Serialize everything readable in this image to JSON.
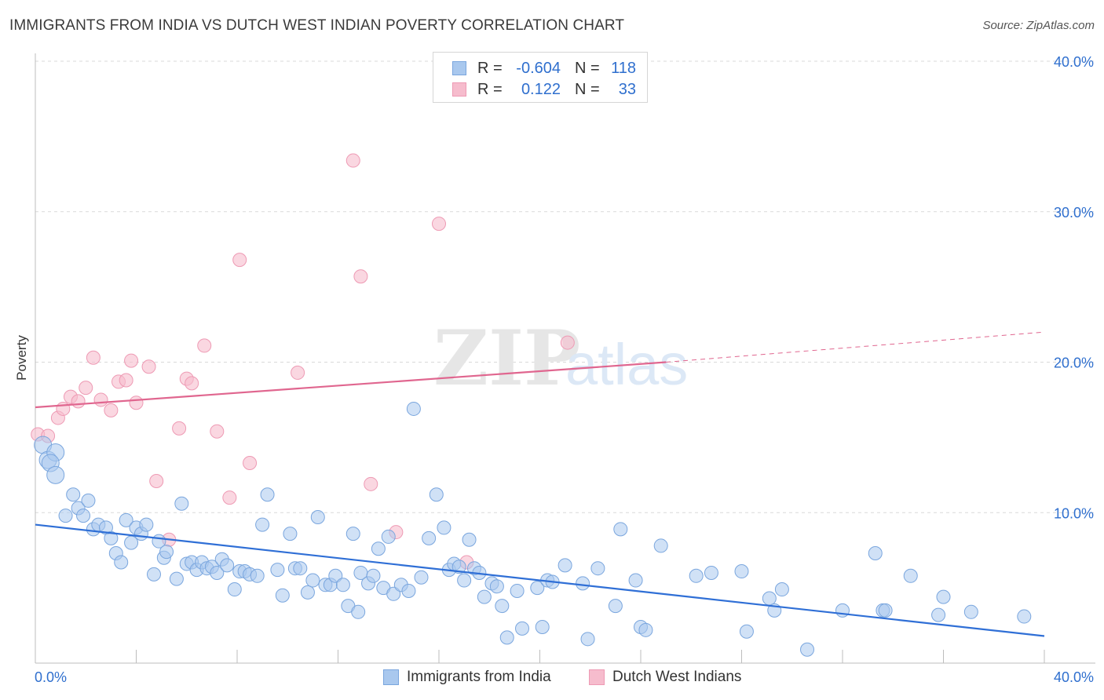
{
  "header": {
    "title": "IMMIGRANTS FROM INDIA VS DUTCH WEST INDIAN POVERTY CORRELATION CHART",
    "source": "Source: ZipAtlas.com"
  },
  "legend": {
    "rows": [
      {
        "r_label": "R =",
        "r_value": "-0.604",
        "n_label": "N =",
        "n_value": "118"
      },
      {
        "r_label": "R =",
        "r_value": "0.122",
        "n_label": "N =",
        "n_value": "33"
      }
    ]
  },
  "bottom_legend": {
    "items": [
      "Immigrants from India",
      "Dutch West Indians"
    ]
  },
  "colors": {
    "blue_fill": "#a9c8ee",
    "blue_stroke": "#7aa6de",
    "blue_line": "#2f6fd6",
    "pink_fill": "#f6bccd",
    "pink_stroke": "#ee9ab4",
    "pink_line": "#e0668f",
    "axis_label": "#2f6fce",
    "grid": "#d9d9d9"
  },
  "chart_data": {
    "type": "scatter",
    "title": "IMMIGRANTS FROM INDIA VS DUTCH WEST INDIAN POVERTY CORRELATION CHART",
    "xlabel": "",
    "ylabel": "Poverty",
    "xlim": [
      0,
      40
    ],
    "ylim": [
      0,
      40
    ],
    "x_tick_labels": [
      "0.0%",
      "40.0%"
    ],
    "y_tick_labels": [
      "10.0%",
      "20.0%",
      "30.0%",
      "40.0%"
    ],
    "y_ticks": [
      10,
      20,
      30,
      40
    ],
    "grid": true,
    "legend_position": "top-center",
    "watermark": "ZIPatlas",
    "series": [
      {
        "name": "Immigrants from India",
        "color": "#a9c8ee",
        "trend": {
          "x": [
            0,
            40
          ],
          "y": [
            9.2,
            1.8
          ]
        },
        "points": [
          [
            0.3,
            14.5
          ],
          [
            0.5,
            13.5
          ],
          [
            0.8,
            14.0
          ],
          [
            0.6,
            13.3
          ],
          [
            0.8,
            12.5
          ],
          [
            1.2,
            9.8
          ],
          [
            1.5,
            11.2
          ],
          [
            1.7,
            10.3
          ],
          [
            1.9,
            9.8
          ],
          [
            2.1,
            10.8
          ],
          [
            2.3,
            8.9
          ],
          [
            2.5,
            9.2
          ],
          [
            2.8,
            9.0
          ],
          [
            3.0,
            8.3
          ],
          [
            3.2,
            7.3
          ],
          [
            3.4,
            6.7
          ],
          [
            3.6,
            9.5
          ],
          [
            3.8,
            8.0
          ],
          [
            4.0,
            9.0
          ],
          [
            4.2,
            8.6
          ],
          [
            4.4,
            9.2
          ],
          [
            4.7,
            5.9
          ],
          [
            4.9,
            8.1
          ],
          [
            5.1,
            7.0
          ],
          [
            5.2,
            7.4
          ],
          [
            5.6,
            5.6
          ],
          [
            5.8,
            10.6
          ],
          [
            6.0,
            6.6
          ],
          [
            6.2,
            6.7
          ],
          [
            6.4,
            6.2
          ],
          [
            6.6,
            6.7
          ],
          [
            6.8,
            6.3
          ],
          [
            7.0,
            6.4
          ],
          [
            7.2,
            6.0
          ],
          [
            7.4,
            6.9
          ],
          [
            7.6,
            6.5
          ],
          [
            7.9,
            4.9
          ],
          [
            8.1,
            6.1
          ],
          [
            8.3,
            6.1
          ],
          [
            8.5,
            5.9
          ],
          [
            8.8,
            5.8
          ],
          [
            9.0,
            9.2
          ],
          [
            9.2,
            11.2
          ],
          [
            9.6,
            6.2
          ],
          [
            9.8,
            4.5
          ],
          [
            10.1,
            8.6
          ],
          [
            10.3,
            6.3
          ],
          [
            10.5,
            6.3
          ],
          [
            10.8,
            4.7
          ],
          [
            11.0,
            5.5
          ],
          [
            11.2,
            9.7
          ],
          [
            11.5,
            5.2
          ],
          [
            11.7,
            5.2
          ],
          [
            11.9,
            5.8
          ],
          [
            12.2,
            5.2
          ],
          [
            12.4,
            3.8
          ],
          [
            12.6,
            8.6
          ],
          [
            12.8,
            3.4
          ],
          [
            12.9,
            6.0
          ],
          [
            13.2,
            5.3
          ],
          [
            13.4,
            5.8
          ],
          [
            13.6,
            7.6
          ],
          [
            13.8,
            5.0
          ],
          [
            14.0,
            8.4
          ],
          [
            14.2,
            4.6
          ],
          [
            14.5,
            5.2
          ],
          [
            14.8,
            4.8
          ],
          [
            15.0,
            16.9
          ],
          [
            15.3,
            5.7
          ],
          [
            15.6,
            8.3
          ],
          [
            15.9,
            11.2
          ],
          [
            16.2,
            9.0
          ],
          [
            16.4,
            6.2
          ],
          [
            16.6,
            6.6
          ],
          [
            16.8,
            6.4
          ],
          [
            17.0,
            5.5
          ],
          [
            17.2,
            8.2
          ],
          [
            17.4,
            6.3
          ],
          [
            17.6,
            6.0
          ],
          [
            17.8,
            4.4
          ],
          [
            18.1,
            5.3
          ],
          [
            18.3,
            5.1
          ],
          [
            18.5,
            3.8
          ],
          [
            18.7,
            1.7
          ],
          [
            19.1,
            4.8
          ],
          [
            19.3,
            2.3
          ],
          [
            19.9,
            5.0
          ],
          [
            20.1,
            2.4
          ],
          [
            20.3,
            5.5
          ],
          [
            20.5,
            5.4
          ],
          [
            21.0,
            6.5
          ],
          [
            21.7,
            5.3
          ],
          [
            21.9,
            1.6
          ],
          [
            22.3,
            6.3
          ],
          [
            23.0,
            3.8
          ],
          [
            23.2,
            8.9
          ],
          [
            23.8,
            5.5
          ],
          [
            24.0,
            2.4
          ],
          [
            24.2,
            2.2
          ],
          [
            24.8,
            7.8
          ],
          [
            26.2,
            5.8
          ],
          [
            26.8,
            6.0
          ],
          [
            28.0,
            6.1
          ],
          [
            28.2,
            2.1
          ],
          [
            29.1,
            4.3
          ],
          [
            29.3,
            3.5
          ],
          [
            29.6,
            4.9
          ],
          [
            30.6,
            0.9
          ],
          [
            32.0,
            3.5
          ],
          [
            33.3,
            7.3
          ],
          [
            33.6,
            3.5
          ],
          [
            33.7,
            3.5
          ],
          [
            34.7,
            5.8
          ],
          [
            35.8,
            3.2
          ],
          [
            36.0,
            4.4
          ],
          [
            37.1,
            3.4
          ],
          [
            39.2,
            3.1
          ]
        ]
      },
      {
        "name": "Dutch West Indians",
        "color": "#f6bccd",
        "trend": {
          "x": [
            0,
            25
          ],
          "y": [
            17.0,
            20.0
          ]
        },
        "trend_dashed": {
          "x": [
            25,
            40
          ],
          "y": [
            20.0,
            22.0
          ]
        },
        "points": [
          [
            0.1,
            15.2
          ],
          [
            0.5,
            15.1
          ],
          [
            0.9,
            16.3
          ],
          [
            1.1,
            16.9
          ],
          [
            1.4,
            17.7
          ],
          [
            1.7,
            17.4
          ],
          [
            2.0,
            18.3
          ],
          [
            2.3,
            20.3
          ],
          [
            2.6,
            17.5
          ],
          [
            3.0,
            16.8
          ],
          [
            3.3,
            18.7
          ],
          [
            3.6,
            18.8
          ],
          [
            3.8,
            20.1
          ],
          [
            4.0,
            17.3
          ],
          [
            4.5,
            19.7
          ],
          [
            4.8,
            12.1
          ],
          [
            5.3,
            8.2
          ],
          [
            5.7,
            15.6
          ],
          [
            6.0,
            18.9
          ],
          [
            6.2,
            18.6
          ],
          [
            6.7,
            21.1
          ],
          [
            7.2,
            15.4
          ],
          [
            7.7,
            11.0
          ],
          [
            8.1,
            26.8
          ],
          [
            8.5,
            13.3
          ],
          [
            10.4,
            19.3
          ],
          [
            12.6,
            33.4
          ],
          [
            12.9,
            25.7
          ],
          [
            13.3,
            11.9
          ],
          [
            14.3,
            8.7
          ],
          [
            16.0,
            29.2
          ],
          [
            17.1,
            6.7
          ],
          [
            21.1,
            21.3
          ]
        ]
      }
    ]
  }
}
